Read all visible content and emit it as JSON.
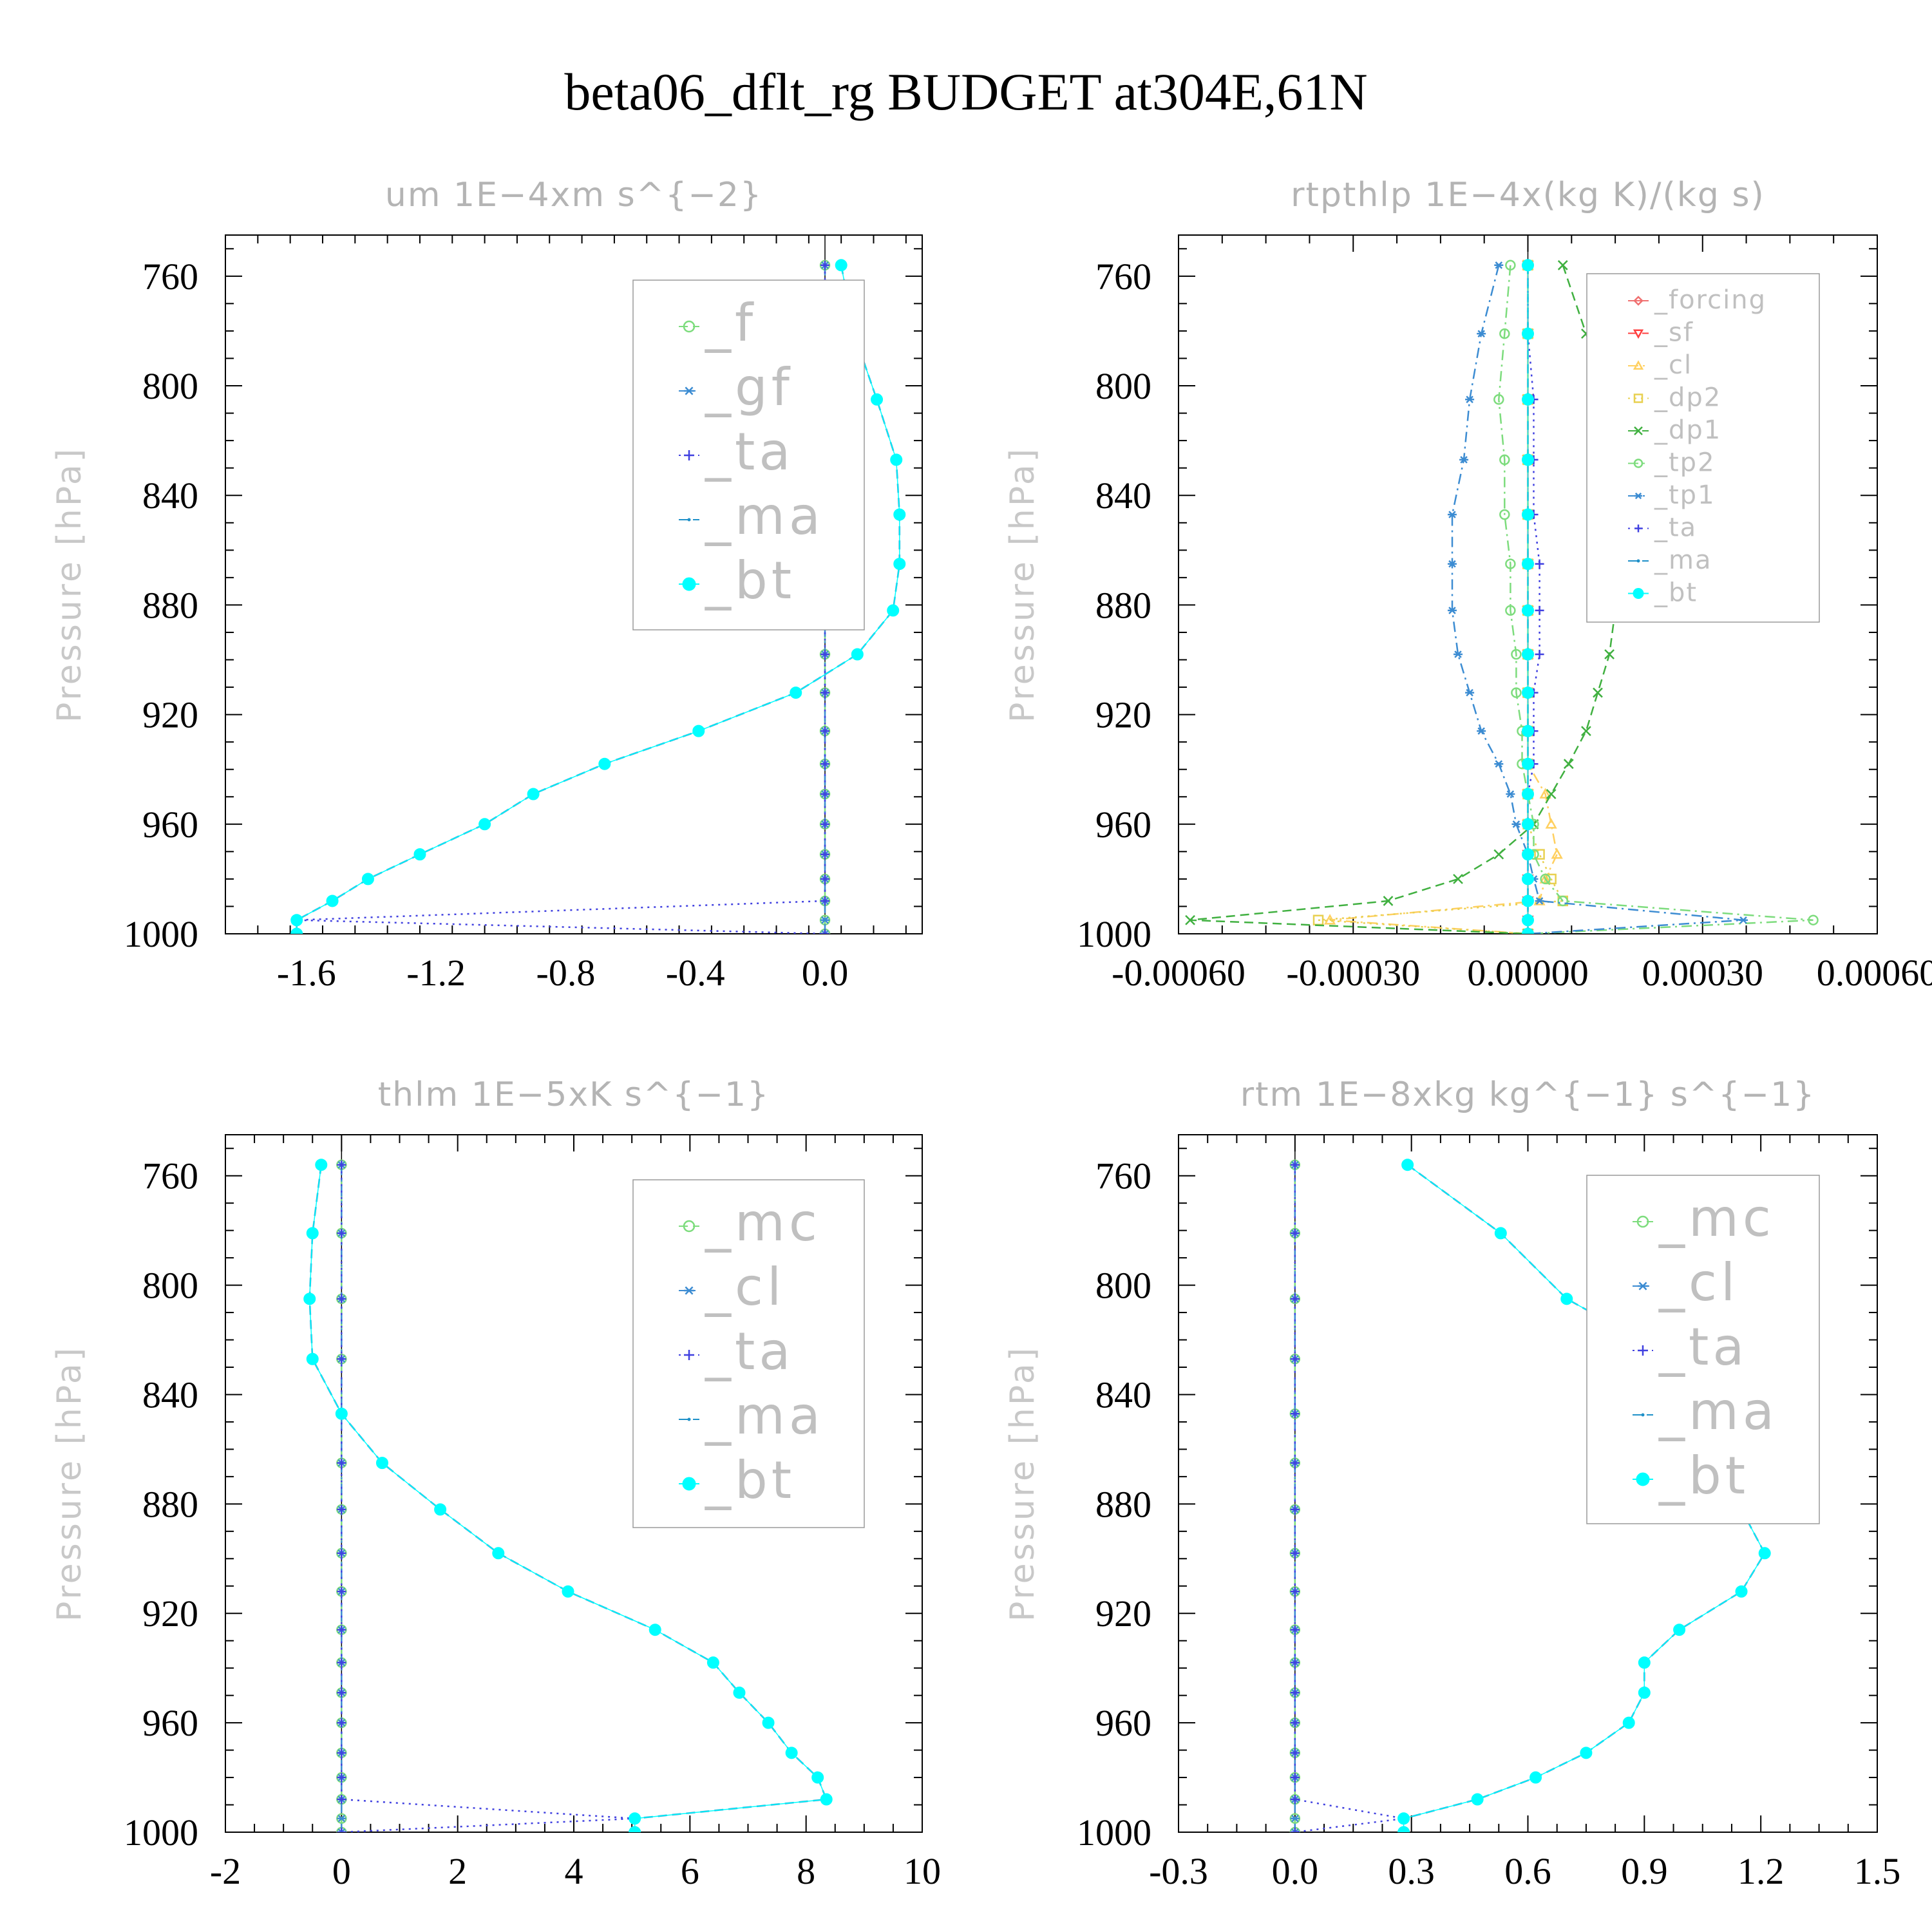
{
  "title": "beta06_dflt_rg  BUDGET at304E,61N",
  "ylabel": "Pressure [hPa]",
  "chart_data": [
    {
      "type": "line",
      "title": "um   1E−4xm s^{−2}",
      "ylabel": "Pressure [hPa]",
      "xticks": [
        "-1.6",
        "-1.2",
        "-0.8",
        "-0.4",
        "0.0"
      ],
      "xtick_values": [
        -1.6,
        -1.2,
        -0.8,
        -0.4,
        0.0
      ],
      "xlim": [
        -1.85,
        0.3
      ],
      "yticks": [
        "760",
        "800",
        "840",
        "880",
        "920",
        "960",
        "1000"
      ],
      "ylim": [
        1000,
        745
      ],
      "y": [
        756,
        781,
        805,
        827,
        847,
        865,
        882,
        898,
        912,
        926,
        938,
        949,
        960,
        971,
        980,
        988,
        995,
        1000
      ],
      "legend_size": "large",
      "series": [
        {
          "name": "_f",
          "color": "#7ddc7d",
          "marker": "circle",
          "dash": "dash",
          "values": [
            0,
            0,
            0,
            0,
            0,
            0,
            0,
            0,
            0,
            0,
            0,
            0,
            0,
            0,
            0,
            0,
            0,
            0
          ]
        },
        {
          "name": "_gf",
          "color": "#3c8cd2",
          "marker": "star",
          "dash": "dashdot",
          "values": [
            0,
            0,
            0,
            0,
            0,
            0,
            0,
            0,
            0,
            0,
            0,
            0,
            0,
            0,
            0,
            0,
            0,
            0
          ]
        },
        {
          "name": "_ta",
          "color": "#4040e0",
          "marker": "plus",
          "dash": "dot",
          "values": [
            0,
            0,
            0,
            0,
            0,
            0,
            0,
            0,
            0,
            0,
            0,
            0,
            0,
            0,
            0,
            0,
            -1.63,
            0
          ]
        },
        {
          "name": "_ma",
          "color": "#1e90c8",
          "marker": "dot",
          "dash": "dash",
          "values": [
            0.05,
            0.09,
            0.16,
            0.22,
            0.23,
            0.23,
            0.21,
            0.1,
            -0.09,
            -0.39,
            -0.68,
            -0.9,
            -1.05,
            -1.25,
            -1.41,
            -1.52,
            -1.63,
            -1.63
          ]
        },
        {
          "name": "_bt",
          "color": "#00ffff",
          "marker": "filled",
          "dash": "solid",
          "values": [
            0.05,
            0.09,
            0.16,
            0.22,
            0.23,
            0.23,
            0.21,
            0.1,
            -0.09,
            -0.39,
            -0.68,
            -0.9,
            -1.05,
            -1.25,
            -1.41,
            -1.52,
            -1.63,
            -1.63
          ]
        }
      ]
    },
    {
      "type": "line",
      "title": "rtpthlp   1E−4x(kg K)/(kg s)",
      "ylabel": "Pressure [hPa]",
      "xticks": [
        "-0.00060",
        "-0.00030",
        "0.00000",
        "0.00030",
        "0.00060"
      ],
      "xtick_values": [
        -0.0006,
        -0.0003,
        0.0,
        0.0003,
        0.0006
      ],
      "xlim": [
        -0.0006,
        0.0006
      ],
      "yticks": [
        "760",
        "800",
        "840",
        "880",
        "920",
        "960",
        "1000"
      ],
      "ylim": [
        1000,
        745
      ],
      "y": [
        756,
        781,
        805,
        827,
        847,
        865,
        882,
        898,
        912,
        926,
        938,
        949,
        960,
        971,
        980,
        988,
        995,
        1000
      ],
      "legend_size": "small",
      "series": [
        {
          "name": "_forcing",
          "color": "#f07070",
          "marker": "diamond",
          "dash": "solid",
          "values": [
            0,
            0,
            0,
            0,
            0,
            0,
            0,
            0,
            0,
            0,
            0,
            0,
            0,
            0,
            0,
            0,
            0,
            0
          ]
        },
        {
          "name": "_sf",
          "color": "#ff4040",
          "marker": "tri-down",
          "dash": "dash",
          "values": [
            0,
            0,
            0,
            0,
            0,
            0,
            0,
            0,
            0,
            0,
            0,
            0,
            0,
            0,
            0,
            0,
            0,
            0
          ]
        },
        {
          "name": "_cl",
          "color": "#ffd060",
          "marker": "tri-up",
          "dash": "dashdot",
          "values": [
            0,
            0,
            0,
            0,
            0,
            0,
            0,
            0,
            0,
            0,
            0,
            3e-05,
            4e-05,
            5e-05,
            3e-05,
            2e-05,
            -0.00034,
            0
          ]
        },
        {
          "name": "_dp2",
          "color": "#e8d050",
          "marker": "square",
          "dash": "dot",
          "values": [
            0,
            0,
            0,
            0,
            0,
            0,
            0,
            0,
            0,
            0,
            0,
            0,
            0,
            2e-05,
            4e-05,
            6e-05,
            -0.00036,
            0
          ]
        },
        {
          "name": "_dp1",
          "color": "#40b040",
          "marker": "x",
          "dash": "dash",
          "values": [
            6e-05,
            0.0001,
            0.00014,
            0.00016,
            0.00016,
            0.00016,
            0.00015,
            0.00014,
            0.00012,
            0.0001,
            7e-05,
            4e-05,
            1e-05,
            -5e-05,
            -0.00012,
            -0.00024,
            -0.00058,
            0
          ]
        },
        {
          "name": "_tp2",
          "color": "#7ddc7d",
          "marker": "circle",
          "dash": "dashdot",
          "values": [
            -3e-05,
            -4e-05,
            -5e-05,
            -4e-05,
            -4e-05,
            -3e-05,
            -3e-05,
            -2e-05,
            -2e-05,
            -1e-05,
            -1e-05,
            0,
            1e-05,
            1e-05,
            3e-05,
            6e-05,
            0.00049,
            0
          ]
        },
        {
          "name": "_tp1",
          "color": "#3c8cd2",
          "marker": "star",
          "dash": "dashdot",
          "values": [
            -5e-05,
            -8e-05,
            -0.0001,
            -0.00011,
            -0.00013,
            -0.00013,
            -0.00013,
            -0.00012,
            -0.0001,
            -8e-05,
            -5e-05,
            -3e-05,
            -2e-05,
            0,
            1e-05,
            2e-05,
            0.00037,
            0
          ]
        },
        {
          "name": "_ta",
          "color": "#4040e0",
          "marker": "plus",
          "dash": "dot",
          "values": [
            0,
            0,
            1e-05,
            1e-05,
            1e-05,
            2e-05,
            2e-05,
            2e-05,
            1e-05,
            1e-05,
            1e-05,
            0,
            0,
            0,
            0,
            0,
            0,
            0
          ]
        },
        {
          "name": "_ma",
          "color": "#1e90c8",
          "marker": "dot",
          "dash": "dash",
          "values": [
            0,
            0,
            0,
            0,
            0,
            0,
            0,
            0,
            0,
            0,
            0,
            0,
            0,
            0,
            0,
            0,
            0,
            0
          ]
        },
        {
          "name": "_bt",
          "color": "#00ffff",
          "marker": "filled",
          "dash": "solid",
          "values": [
            0,
            0,
            0,
            0,
            0,
            0,
            0,
            0,
            0,
            0,
            0,
            0,
            0,
            0,
            0,
            0,
            0,
            0
          ]
        }
      ]
    },
    {
      "type": "line",
      "title": "thlm   1E−5xK s^{−1}",
      "ylabel": "Pressure [hPa]",
      "xticks": [
        "-2",
        "0",
        "2",
        "4",
        "6",
        "8",
        "10"
      ],
      "xtick_values": [
        -2,
        0,
        2,
        4,
        6,
        8,
        10
      ],
      "xlim": [
        -2,
        10
      ],
      "yticks": [
        "760",
        "800",
        "840",
        "880",
        "920",
        "960",
        "1000"
      ],
      "ylim": [
        1000,
        745
      ],
      "y": [
        756,
        781,
        805,
        827,
        847,
        865,
        882,
        898,
        912,
        926,
        938,
        949,
        960,
        971,
        980,
        988,
        995,
        1000
      ],
      "legend_size": "large",
      "series": [
        {
          "name": "_mc",
          "color": "#7ddc7d",
          "marker": "circle",
          "dash": "dash",
          "values": [
            0,
            0,
            0,
            0,
            0,
            0,
            0,
            0,
            0,
            0,
            0,
            0,
            0,
            0,
            0,
            0,
            0,
            0
          ]
        },
        {
          "name": "_cl",
          "color": "#3c8cd2",
          "marker": "star",
          "dash": "dashdot",
          "values": [
            0,
            0,
            0,
            0,
            0,
            0,
            0,
            0,
            0,
            0,
            0,
            0,
            0,
            0,
            0,
            0,
            0,
            0
          ]
        },
        {
          "name": "_ta",
          "color": "#4040e0",
          "marker": "plus",
          "dash": "dot",
          "values": [
            0,
            0,
            0,
            0,
            0,
            0,
            0,
            0,
            0,
            0,
            0,
            0,
            0,
            0,
            0,
            0,
            5.05,
            0
          ]
        },
        {
          "name": "_ma",
          "color": "#1e90c8",
          "marker": "dot",
          "dash": "dash",
          "values": [
            -0.35,
            -0.5,
            -0.55,
            -0.5,
            0,
            0.7,
            1.7,
            2.7,
            3.9,
            5.4,
            6.4,
            6.85,
            7.35,
            7.75,
            8.2,
            8.35,
            5.05,
            5.05
          ]
        },
        {
          "name": "_bt",
          "color": "#00ffff",
          "marker": "filled",
          "dash": "solid",
          "values": [
            -0.35,
            -0.5,
            -0.55,
            -0.5,
            0,
            0.7,
            1.7,
            2.7,
            3.9,
            5.4,
            6.4,
            6.85,
            7.35,
            7.75,
            8.2,
            8.35,
            5.05,
            5.05
          ]
        }
      ]
    },
    {
      "type": "line",
      "title": "rtm   1E−8xkg kg^{−1} s^{−1}",
      "ylabel": "Pressure [hPa]",
      "xticks": [
        "-0.3",
        "0.0",
        "0.3",
        "0.6",
        "0.9",
        "1.2",
        "1.5"
      ],
      "xtick_values": [
        -0.3,
        0.0,
        0.3,
        0.6,
        0.9,
        1.2,
        1.5
      ],
      "xlim": [
        -0.3,
        1.5
      ],
      "yticks": [
        "760",
        "800",
        "840",
        "880",
        "920",
        "960",
        "1000"
      ],
      "ylim": [
        1000,
        745
      ],
      "y": [
        756,
        781,
        805,
        827,
        847,
        865,
        882,
        898,
        912,
        926,
        938,
        949,
        960,
        971,
        980,
        988,
        995,
        1000
      ],
      "legend_size": "large",
      "series": [
        {
          "name": "_mc",
          "color": "#7ddc7d",
          "marker": "circle",
          "dash": "dash",
          "values": [
            0,
            0,
            0,
            0,
            0,
            0,
            0,
            0,
            0,
            0,
            0,
            0,
            0,
            0,
            0,
            0,
            0,
            0
          ]
        },
        {
          "name": "_cl",
          "color": "#3c8cd2",
          "marker": "star",
          "dash": "dashdot",
          "values": [
            0,
            0,
            0,
            0,
            0,
            0,
            0,
            0,
            0,
            0,
            0,
            0,
            0,
            0,
            0,
            0,
            0,
            0
          ]
        },
        {
          "name": "_ta",
          "color": "#4040e0",
          "marker": "plus",
          "dash": "dot",
          "values": [
            0,
            0,
            0,
            0,
            0,
            0,
            0,
            0,
            0,
            0,
            0,
            0,
            0,
            0,
            0,
            0,
            0.28,
            0
          ]
        },
        {
          "name": "_ma",
          "color": "#1e90c8",
          "marker": "dot",
          "dash": "dash",
          "values": [
            0.29,
            0.53,
            0.7,
            0.98,
            1.05,
            1.09,
            1.15,
            1.21,
            1.15,
            0.99,
            0.9,
            0.9,
            0.86,
            0.75,
            0.62,
            0.47,
            0.28,
            0.28
          ]
        },
        {
          "name": "_bt",
          "color": "#00ffff",
          "marker": "filled",
          "dash": "solid",
          "values": [
            0.29,
            0.53,
            0.7,
            0.98,
            1.05,
            1.09,
            1.15,
            1.21,
            1.15,
            0.99,
            0.9,
            0.9,
            0.86,
            0.75,
            0.62,
            0.47,
            0.28,
            0.28
          ]
        }
      ]
    }
  ]
}
